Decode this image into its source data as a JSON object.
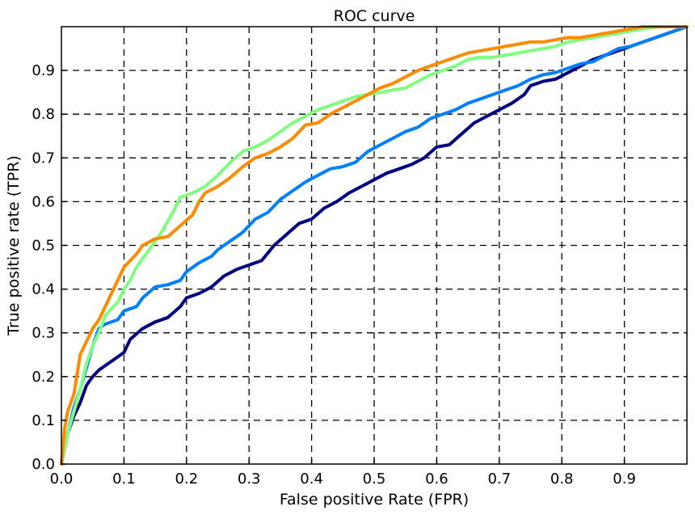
{
  "chart_data": {
    "type": "line",
    "title": "ROC curve",
    "xlabel": "False positive Rate (FPR)",
    "ylabel": "True positive rate (TPR)",
    "xlim": [
      0,
      1
    ],
    "ylim": [
      0,
      1
    ],
    "xticks": [
      "0.0",
      "0.1",
      "0.2",
      "0.3",
      "0.4",
      "0.5",
      "0.6",
      "0.7",
      "0.8",
      "0.9"
    ],
    "yticks": [
      "0.0",
      "0.1",
      "0.2",
      "0.3",
      "0.4",
      "0.5",
      "0.6",
      "0.7",
      "0.8",
      "0.9"
    ],
    "grid": true,
    "series": [
      {
        "color": "#000080",
        "points": [
          [
            0,
            0
          ],
          [
            0.01,
            0.07
          ],
          [
            0.02,
            0.11
          ],
          [
            0.03,
            0.14
          ],
          [
            0.04,
            0.18
          ],
          [
            0.05,
            0.2
          ],
          [
            0.06,
            0.215
          ],
          [
            0.08,
            0.235
          ],
          [
            0.1,
            0.255
          ],
          [
            0.11,
            0.285
          ],
          [
            0.13,
            0.31
          ],
          [
            0.15,
            0.325
          ],
          [
            0.17,
            0.335
          ],
          [
            0.19,
            0.36
          ],
          [
            0.2,
            0.38
          ],
          [
            0.22,
            0.39
          ],
          [
            0.24,
            0.405
          ],
          [
            0.26,
            0.43
          ],
          [
            0.28,
            0.445
          ],
          [
            0.3,
            0.455
          ],
          [
            0.32,
            0.465
          ],
          [
            0.34,
            0.5
          ],
          [
            0.36,
            0.525
          ],
          [
            0.38,
            0.55
          ],
          [
            0.4,
            0.56
          ],
          [
            0.42,
            0.585
          ],
          [
            0.44,
            0.6
          ],
          [
            0.46,
            0.62
          ],
          [
            0.48,
            0.635
          ],
          [
            0.5,
            0.65
          ],
          [
            0.52,
            0.665
          ],
          [
            0.54,
            0.675
          ],
          [
            0.56,
            0.685
          ],
          [
            0.58,
            0.7
          ],
          [
            0.6,
            0.725
          ],
          [
            0.62,
            0.73
          ],
          [
            0.64,
            0.755
          ],
          [
            0.66,
            0.78
          ],
          [
            0.68,
            0.795
          ],
          [
            0.7,
            0.81
          ],
          [
            0.72,
            0.825
          ],
          [
            0.74,
            0.845
          ],
          [
            0.75,
            0.865
          ],
          [
            0.77,
            0.875
          ],
          [
            0.79,
            0.88
          ],
          [
            0.81,
            0.895
          ],
          [
            0.83,
            0.91
          ],
          [
            0.85,
            0.925
          ],
          [
            0.87,
            0.935
          ],
          [
            0.9,
            0.95
          ],
          [
            0.93,
            0.965
          ],
          [
            0.96,
            0.98
          ],
          [
            0.98,
            0.99
          ],
          [
            1,
            1
          ]
        ]
      },
      {
        "color": "#0080ff",
        "points": [
          [
            0,
            0
          ],
          [
            0.01,
            0.07
          ],
          [
            0.02,
            0.13
          ],
          [
            0.03,
            0.17
          ],
          [
            0.04,
            0.22
          ],
          [
            0.05,
            0.27
          ],
          [
            0.06,
            0.31
          ],
          [
            0.07,
            0.32
          ],
          [
            0.09,
            0.33
          ],
          [
            0.1,
            0.35
          ],
          [
            0.12,
            0.36
          ],
          [
            0.13,
            0.38
          ],
          [
            0.15,
            0.405
          ],
          [
            0.17,
            0.41
          ],
          [
            0.19,
            0.42
          ],
          [
            0.2,
            0.44
          ],
          [
            0.22,
            0.46
          ],
          [
            0.24,
            0.475
          ],
          [
            0.25,
            0.49
          ],
          [
            0.27,
            0.51
          ],
          [
            0.29,
            0.53
          ],
          [
            0.31,
            0.56
          ],
          [
            0.33,
            0.575
          ],
          [
            0.35,
            0.605
          ],
          [
            0.37,
            0.625
          ],
          [
            0.39,
            0.645
          ],
          [
            0.41,
            0.66
          ],
          [
            0.43,
            0.675
          ],
          [
            0.45,
            0.68
          ],
          [
            0.47,
            0.69
          ],
          [
            0.49,
            0.715
          ],
          [
            0.51,
            0.73
          ],
          [
            0.53,
            0.745
          ],
          [
            0.55,
            0.76
          ],
          [
            0.57,
            0.77
          ],
          [
            0.59,
            0.79
          ],
          [
            0.61,
            0.8
          ],
          [
            0.63,
            0.81
          ],
          [
            0.65,
            0.825
          ],
          [
            0.67,
            0.835
          ],
          [
            0.69,
            0.845
          ],
          [
            0.71,
            0.855
          ],
          [
            0.73,
            0.865
          ],
          [
            0.75,
            0.88
          ],
          [
            0.77,
            0.89
          ],
          [
            0.79,
            0.895
          ],
          [
            0.81,
            0.905
          ],
          [
            0.83,
            0.915
          ],
          [
            0.85,
            0.92
          ],
          [
            0.87,
            0.935
          ],
          [
            0.89,
            0.95
          ],
          [
            0.91,
            0.955
          ],
          [
            0.93,
            0.965
          ],
          [
            0.95,
            0.975
          ],
          [
            0.97,
            0.985
          ],
          [
            1,
            1
          ]
        ]
      },
      {
        "color": "#80ff80",
        "points": [
          [
            0,
            0
          ],
          [
            0.01,
            0.07
          ],
          [
            0.02,
            0.12
          ],
          [
            0.03,
            0.17
          ],
          [
            0.04,
            0.23
          ],
          [
            0.05,
            0.27
          ],
          [
            0.06,
            0.3
          ],
          [
            0.07,
            0.34
          ],
          [
            0.09,
            0.37
          ],
          [
            0.1,
            0.4
          ],
          [
            0.11,
            0.42
          ],
          [
            0.12,
            0.45
          ],
          [
            0.14,
            0.49
          ],
          [
            0.16,
            0.53
          ],
          [
            0.18,
            0.58
          ],
          [
            0.19,
            0.61
          ],
          [
            0.21,
            0.62
          ],
          [
            0.23,
            0.635
          ],
          [
            0.25,
            0.66
          ],
          [
            0.27,
            0.69
          ],
          [
            0.29,
            0.715
          ],
          [
            0.31,
            0.725
          ],
          [
            0.33,
            0.74
          ],
          [
            0.35,
            0.76
          ],
          [
            0.37,
            0.78
          ],
          [
            0.39,
            0.795
          ],
          [
            0.41,
            0.81
          ],
          [
            0.43,
            0.82
          ],
          [
            0.45,
            0.83
          ],
          [
            0.47,
            0.84
          ],
          [
            0.49,
            0.845
          ],
          [
            0.51,
            0.85
          ],
          [
            0.53,
            0.855
          ],
          [
            0.55,
            0.86
          ],
          [
            0.57,
            0.875
          ],
          [
            0.59,
            0.89
          ],
          [
            0.61,
            0.9
          ],
          [
            0.63,
            0.91
          ],
          [
            0.65,
            0.925
          ],
          [
            0.67,
            0.93
          ],
          [
            0.69,
            0.93
          ],
          [
            0.71,
            0.935
          ],
          [
            0.73,
            0.94
          ],
          [
            0.75,
            0.945
          ],
          [
            0.77,
            0.95
          ],
          [
            0.79,
            0.955
          ],
          [
            0.81,
            0.965
          ],
          [
            0.83,
            0.97
          ],
          [
            0.85,
            0.975
          ],
          [
            0.87,
            0.98
          ],
          [
            0.89,
            0.985
          ],
          [
            0.91,
            0.99
          ],
          [
            0.93,
            0.995
          ],
          [
            0.96,
            1
          ],
          [
            1,
            1
          ]
        ]
      },
      {
        "color": "#ff8c00",
        "points": [
          [
            0,
            0
          ],
          [
            0.005,
            0.08
          ],
          [
            0.01,
            0.12
          ],
          [
            0.02,
            0.16
          ],
          [
            0.03,
            0.25
          ],
          [
            0.04,
            0.28
          ],
          [
            0.05,
            0.31
          ],
          [
            0.06,
            0.33
          ],
          [
            0.07,
            0.36
          ],
          [
            0.08,
            0.39
          ],
          [
            0.09,
            0.42
          ],
          [
            0.1,
            0.45
          ],
          [
            0.12,
            0.48
          ],
          [
            0.13,
            0.5
          ],
          [
            0.15,
            0.515
          ],
          [
            0.17,
            0.52
          ],
          [
            0.19,
            0.545
          ],
          [
            0.21,
            0.57
          ],
          [
            0.22,
            0.6
          ],
          [
            0.23,
            0.62
          ],
          [
            0.25,
            0.635
          ],
          [
            0.27,
            0.655
          ],
          [
            0.29,
            0.68
          ],
          [
            0.31,
            0.7
          ],
          [
            0.33,
            0.71
          ],
          [
            0.35,
            0.725
          ],
          [
            0.37,
            0.745
          ],
          [
            0.39,
            0.775
          ],
          [
            0.41,
            0.78
          ],
          [
            0.43,
            0.8
          ],
          [
            0.45,
            0.815
          ],
          [
            0.47,
            0.83
          ],
          [
            0.49,
            0.845
          ],
          [
            0.51,
            0.86
          ],
          [
            0.53,
            0.87
          ],
          [
            0.55,
            0.885
          ],
          [
            0.57,
            0.9
          ],
          [
            0.59,
            0.91
          ],
          [
            0.61,
            0.92
          ],
          [
            0.63,
            0.93
          ],
          [
            0.65,
            0.94
          ],
          [
            0.67,
            0.945
          ],
          [
            0.69,
            0.95
          ],
          [
            0.71,
            0.955
          ],
          [
            0.73,
            0.96
          ],
          [
            0.75,
            0.965
          ],
          [
            0.77,
            0.965
          ],
          [
            0.79,
            0.97
          ],
          [
            0.81,
            0.975
          ],
          [
            0.83,
            0.975
          ],
          [
            0.85,
            0.98
          ],
          [
            0.87,
            0.985
          ],
          [
            0.89,
            0.99
          ],
          [
            0.91,
            0.995
          ],
          [
            0.93,
            1
          ],
          [
            1,
            1
          ]
        ]
      }
    ]
  }
}
